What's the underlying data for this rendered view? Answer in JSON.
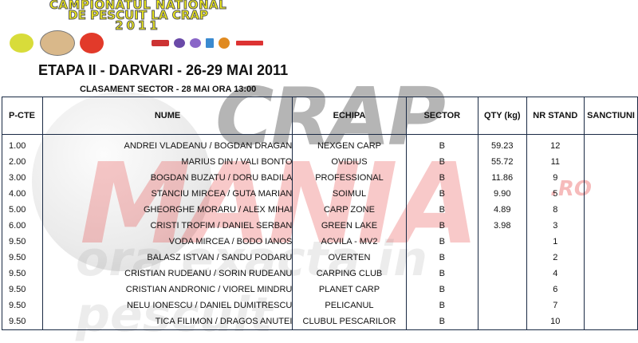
{
  "header": {
    "banner_lines": [
      "CAMPIONATUL NATIONAL",
      "DE PESCUIT LA CRAP",
      "2011"
    ],
    "title": "ETAPA II - DARVARI - 26-29 MAI 2011",
    "subtitle": "CLASAMENT SECTOR  - 28 MAI ORA 13:00"
  },
  "watermark": {
    "line1": "CRAP",
    "line2": "MANIA",
    "suffix": ".RO",
    "tagline": "ora exacta in pescuit"
  },
  "table": {
    "columns": [
      "P-CTE",
      "NUME",
      "ECHIPA",
      "SECTOR",
      "QTY (kg)",
      "NR STAND",
      "SANCTIUNI"
    ],
    "rows": [
      [
        "1.00",
        "ANDREI VLADEANU / BOGDAN DRAGAN",
        "NEXGEN CARP",
        "B",
        "59.23",
        "12",
        ""
      ],
      [
        "2.00",
        "MARIUS DIN / VALI BONTO",
        "OVIDIUS",
        "B",
        "55.72",
        "11",
        ""
      ],
      [
        "3.00",
        "BOGDAN BUZATU / DORU BADILA",
        "PROFESSIONAL",
        "B",
        "11.86",
        "9",
        ""
      ],
      [
        "4.00",
        "STANCIU MIRCEA / GUTA MARIAN",
        "SOIMUL",
        "B",
        "9.90",
        "5",
        ""
      ],
      [
        "5.00",
        "GHEORGHE MORARU / ALEX MIHAI",
        "CARP ZONE",
        "B",
        "4.89",
        "8",
        ""
      ],
      [
        "6.00",
        "CRISTI TROFIM / DANIEL SERBAN",
        "GREEN LAKE",
        "B",
        "3.98",
        "3",
        ""
      ],
      [
        "9.50",
        "VODA MIRCEA / BODO IANOS",
        "ACVILA - MV2",
        "B",
        "",
        "1",
        ""
      ],
      [
        "9.50",
        "BALASZ ISTVAN / SANDU PODARU",
        "OVERTEN",
        "B",
        "",
        "2",
        ""
      ],
      [
        "9.50",
        "CRISTIAN RUDEANU / SORIN RUDEANU",
        "CARPING CLUB",
        "B",
        "",
        "4",
        ""
      ],
      [
        "9.50",
        "CRISTIAN ANDRONIC / VIOREL MINDRU",
        "PLANET CARP",
        "B",
        "",
        "6",
        ""
      ],
      [
        "9.50",
        "NELU IONESCU / DANIEL DUMITRESCU",
        "PELICANUL",
        "B",
        "",
        "7",
        ""
      ],
      [
        "9.50",
        "TICA FILIMON / DRAGOS ANUTEI",
        "CLUBUL PESCARILOR",
        "B",
        "",
        "10",
        ""
      ]
    ]
  }
}
